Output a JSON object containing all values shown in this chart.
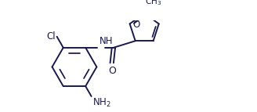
{
  "background_color": "#ffffff",
  "line_color": "#1a1a4a",
  "line_width": 1.4,
  "font_size": 8.5,
  "figsize": [
    3.28,
    1.43
  ],
  "dpi": 100,
  "xlim": [
    0.0,
    10.5
  ],
  "ylim": [
    0.5,
    4.8
  ]
}
